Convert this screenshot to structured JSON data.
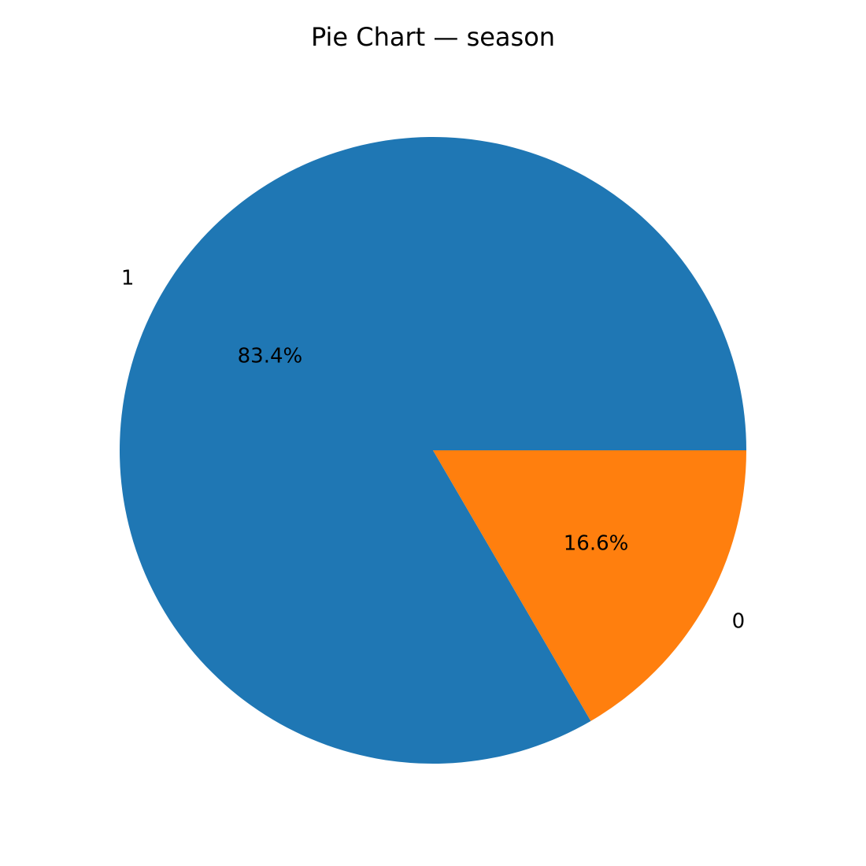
{
  "chart_data": {
    "type": "pie",
    "title": "Pie Chart — season",
    "categories": [
      "1",
      "0"
    ],
    "values": [
      83.4,
      16.6
    ],
    "percent_labels": [
      "83.4%",
      "16.6%"
    ],
    "colors": [
      "#1f77b4",
      "#ff7f0e"
    ],
    "start_angle_deg": 0,
    "direction": "counterclockwise",
    "legend": "none"
  }
}
